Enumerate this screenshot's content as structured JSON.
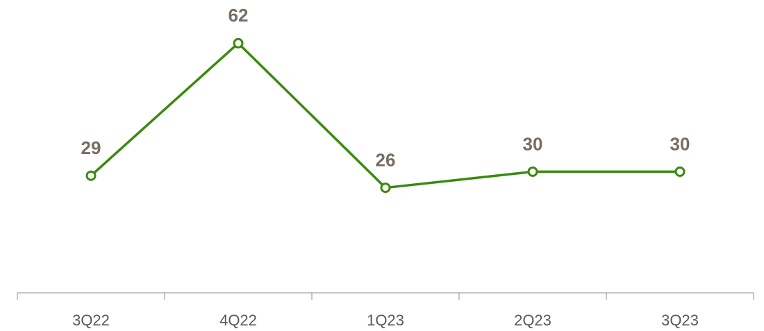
{
  "chart_data": {
    "type": "line",
    "categories": [
      "3Q22",
      "4Q22",
      "1Q23",
      "2Q23",
      "3Q23"
    ],
    "values": [
      29,
      62,
      26,
      30,
      30
    ],
    "color": "#3a8a0f",
    "ylim": [
      0,
      70
    ],
    "grid": false
  }
}
